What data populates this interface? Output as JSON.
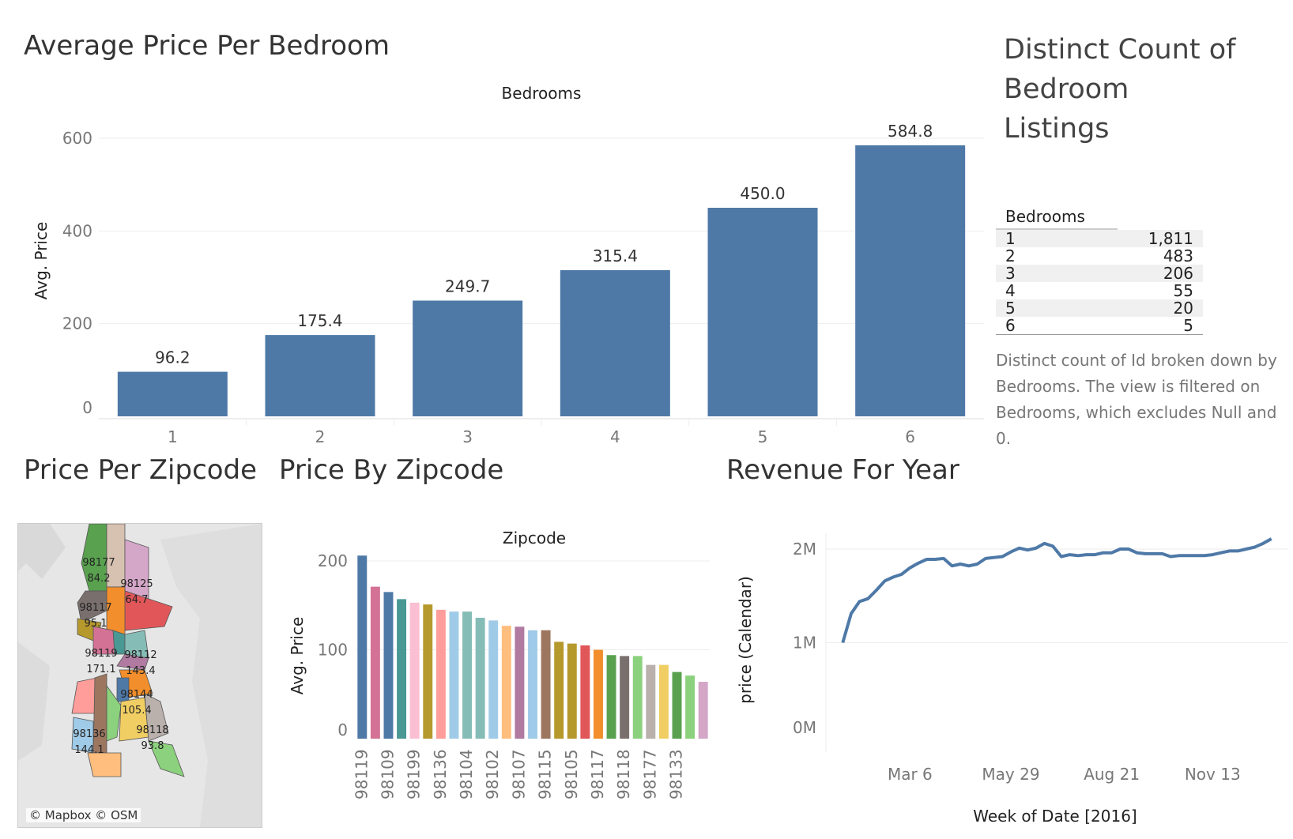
{
  "titles": {
    "bedroom": "Average Price Per Bedroom",
    "zipmap": "Price Per Zipcode",
    "zipbar": "Price By Zipcode",
    "revenue": "Revenue For Year",
    "distinct": "Distinct Count of Bedroom Listings"
  },
  "distinct_table": {
    "header": "Bedrooms",
    "rows": [
      {
        "label": "1",
        "value": "1,811"
      },
      {
        "label": "2",
        "value": "483"
      },
      {
        "label": "3",
        "value": "206"
      },
      {
        "label": "4",
        "value": "55"
      },
      {
        "label": "5",
        "value": "20"
      },
      {
        "label": "6",
        "value": "5"
      }
    ],
    "note": "Distinct count of Id broken down by Bedrooms. The view is filtered on Bedrooms, which excludes Null and 0."
  },
  "map": {
    "credit": "© Mapbox © OSM",
    "labels": [
      {
        "zip": "98177",
        "value": "84.2",
        "color": "#59a14f"
      },
      {
        "zip": "98125",
        "value": "64.7",
        "color": "#d4a6c8"
      },
      {
        "zip": "98117",
        "value": "95.1",
        "color": "#79706e"
      },
      {
        "zip": "98119",
        "value": "171.1",
        "color": "#d37295"
      },
      {
        "zip": "98112",
        "value": "143.4",
        "color": "#86bcb6"
      },
      {
        "zip": "98144",
        "value": "105.4",
        "color": "#f28e2b"
      },
      {
        "zip": "98136",
        "value": "144.1",
        "color": "#a0cbe8"
      },
      {
        "zip": "98118",
        "value": "93.8",
        "color": "#bab0ac"
      }
    ]
  },
  "chart_data": [
    {
      "type": "bar",
      "title": "Average Price Per Bedroom",
      "column_header": "Bedrooms",
      "ylabel": "Avg. Price",
      "categories": [
        "1",
        "2",
        "3",
        "4",
        "5",
        "6"
      ],
      "values": [
        96.2,
        175.4,
        249.7,
        315.4,
        450.0,
        584.8
      ],
      "data_labels": [
        "96.2",
        "175.4",
        "249.7",
        "315.4",
        "450.0",
        "584.8"
      ],
      "yticks": [
        0,
        200,
        400,
        600
      ],
      "ylim": [
        0,
        600
      ],
      "color": "#4e79a7"
    },
    {
      "type": "bar",
      "title": "Price By Zipcode",
      "column_header": "Zipcode",
      "ylabel": "Avg. Price",
      "yticks": [
        0,
        100,
        200
      ],
      "ylim": [
        0,
        200
      ],
      "values": [
        206,
        171,
        165,
        157,
        153,
        151,
        145,
        143,
        143,
        136,
        133,
        127,
        126,
        122,
        122,
        109,
        107,
        105,
        100,
        94,
        93,
        93,
        83,
        83,
        75,
        71,
        64
      ],
      "colors": [
        "#4e79a7",
        "#d37295",
        "#4e79a7",
        "#499894",
        "#fabfd2",
        "#b6992d",
        "#ff9d9a",
        "#a0cbe8",
        "#86bcb6",
        "#86bcb6",
        "#a0cbe8",
        "#ffbe7d",
        "#b07aa1",
        "#a0cbe8",
        "#9d7660",
        "#b6992d",
        "#b6992d",
        "#e15759",
        "#f28e2b",
        "#59a14f",
        "#79706e",
        "#8cd17d",
        "#bab0ac",
        "#f1ce63",
        "#59a14f",
        "#8cd17d",
        "#d4a6c8"
      ],
      "tick_labels": [
        "98119",
        "98109",
        "98199",
        "98136",
        "98104",
        "98102",
        "98107",
        "98115",
        "98105",
        "98117",
        "98118",
        "98177",
        "98133"
      ]
    },
    {
      "type": "line",
      "title": "Revenue For Year",
      "xlabel": "Week of Date [2016]",
      "ylabel": "price (Calendar)",
      "yticks": [
        "0M",
        "1M",
        "2M"
      ],
      "ylim": [
        0,
        2000000
      ],
      "xticks": [
        "Mar 6",
        "May 29",
        "Aug 21",
        "Nov 13"
      ],
      "xtick_weeks": [
        10,
        22,
        34,
        46
      ],
      "color": "#4e79a7",
      "x_weeks": [
        2,
        3,
        4,
        5,
        6,
        7,
        8,
        9,
        10,
        11,
        12,
        13,
        14,
        15,
        16,
        17,
        18,
        19,
        20,
        21,
        22,
        23,
        24,
        25,
        26,
        27,
        28,
        29,
        30,
        31,
        32,
        33,
        34,
        35,
        36,
        37,
        38,
        39,
        40,
        41,
        42,
        43,
        44,
        45,
        46,
        47,
        48,
        49,
        50,
        51,
        52,
        53
      ],
      "values": [
        1000000,
        1310000,
        1440000,
        1470000,
        1560000,
        1660000,
        1700000,
        1730000,
        1800000,
        1850000,
        1890000,
        1890000,
        1900000,
        1820000,
        1840000,
        1820000,
        1840000,
        1900000,
        1910000,
        1920000,
        1970000,
        2010000,
        1990000,
        2010000,
        2060000,
        2030000,
        1920000,
        1940000,
        1930000,
        1940000,
        1940000,
        1960000,
        1960000,
        2000000,
        2000000,
        1960000,
        1950000,
        1950000,
        1950000,
        1920000,
        1930000,
        1930000,
        1930000,
        1930000,
        1940000,
        1960000,
        1980000,
        1980000,
        2000000,
        2020000,
        2060000,
        2110000
      ]
    }
  ]
}
